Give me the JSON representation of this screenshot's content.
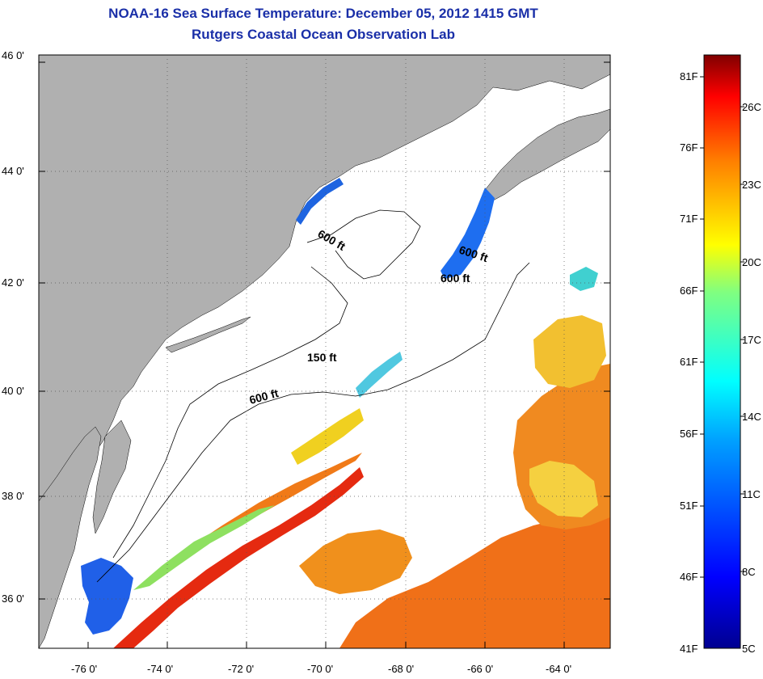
{
  "title": "NOAA-16 Sea Surface Temperature:  December 05, 2012 1415 GMT",
  "subtitle": "Rutgers Coastal Ocean Observation Lab",
  "map": {
    "lat_ticks": [
      "46 0'",
      "44 0'",
      "42 0'",
      "40 0'",
      "38 0'",
      "36 0'"
    ],
    "lon_ticks": [
      "-76 0'",
      "-74 0'",
      "-72 0'",
      "-70 0'",
      "-68 0'",
      "-66 0'",
      "-64 0'"
    ],
    "contours": [
      "600 ft",
      "600 ft",
      "600 ft",
      "150 ft",
      "600 ft"
    ],
    "land_color": "#b0b0b0"
  },
  "colorbar": {
    "fahrenheit_labels": [
      "81F",
      "76F",
      "71F",
      "66F",
      "61F",
      "56F",
      "51F",
      "46F",
      "41F"
    ],
    "celsius_labels": [
      "26C",
      "23C",
      "20C",
      "17C",
      "14C",
      "11C",
      "8C",
      "5C"
    ],
    "range_f": [
      41,
      81
    ],
    "range_c": [
      5,
      27
    ]
  }
}
